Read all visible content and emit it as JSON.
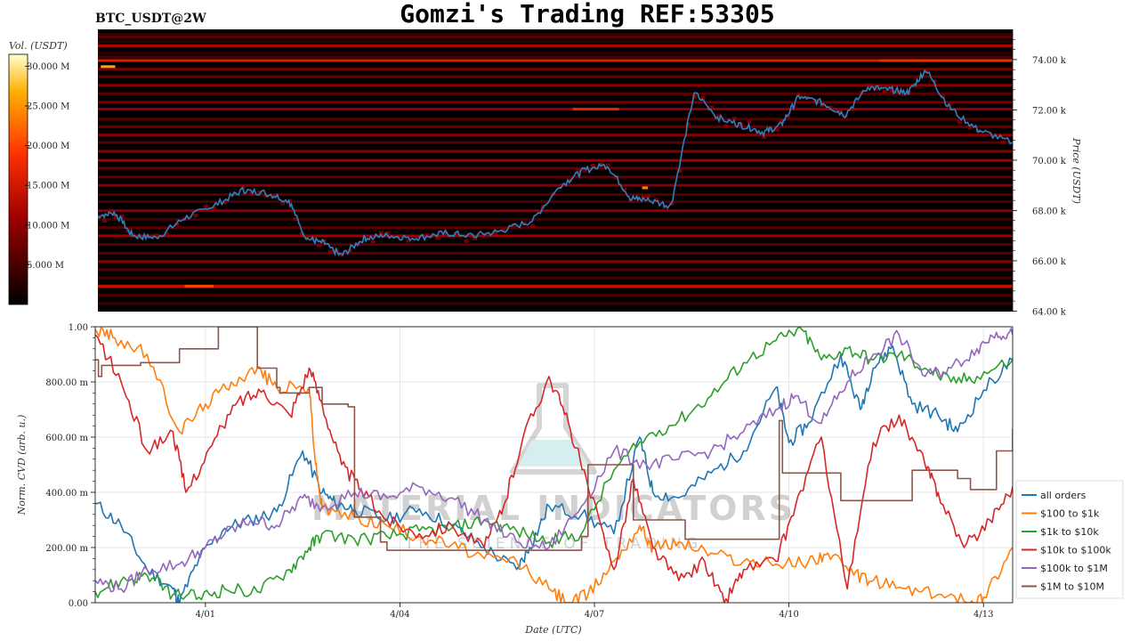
{
  "header": {
    "symbol": "BTC_USDT@2W",
    "title": "Gomzi's Trading REF:53305"
  },
  "colorbar": {
    "label": "Vol. (USDT)",
    "ticks": [
      "30.000 M",
      "25.000 M",
      "20.000 M",
      "15.000 M",
      "10.000 M",
      "5.000 M"
    ],
    "tick_values": [
      30,
      25,
      20,
      15,
      10,
      5
    ],
    "min": 0,
    "max": 31.5
  },
  "watermark": {
    "brand": "MATERIAL INDICATORS",
    "tagline": "THE SCIENCE OF TRADING"
  },
  "chart_data": [
    {
      "type": "heatmap",
      "ylabel": "Price (USDT)",
      "ytick_labels": [
        "74.00 k",
        "72.00 k",
        "70.00 k",
        "68.00 k",
        "66.00 k",
        "64.00 k"
      ],
      "ytick_values": [
        74000,
        72000,
        70000,
        68000,
        66000,
        64000
      ],
      "ylim": [
        63980,
        75200
      ],
      "xlim": [
        0,
        15.8
      ],
      "price_series": {
        "name": "",
        "color": "#2f7fc1",
        "x": [
          0,
          0.3,
          0.6,
          1.0,
          1.5,
          2.0,
          2.5,
          2.9,
          3.3,
          3.6,
          3.9,
          4.2,
          4.6,
          5.0,
          5.5,
          6.0,
          6.5,
          7.0,
          7.5,
          8.0,
          8.4,
          8.8,
          9.2,
          9.5,
          9.9,
          10.3,
          10.7,
          11.1,
          11.5,
          11.8,
          12.1,
          12.5,
          12.9,
          13.3,
          13.7,
          14.0,
          14.3,
          14.7,
          15.2,
          15.8
        ],
        "y": [
          67800,
          67900,
          67000,
          66900,
          67700,
          68200,
          68800,
          68700,
          68400,
          66900,
          66700,
          66200,
          66900,
          67000,
          66900,
          67100,
          67000,
          67200,
          67600,
          69000,
          69600,
          69800,
          68500,
          68400,
          68200,
          72700,
          71700,
          71400,
          71100,
          71400,
          72500,
          72300,
          71800,
          72900,
          72800,
          72700,
          73600,
          72100,
          71200,
          70700
        ]
      },
      "levels": [
        {
          "price": 75000,
          "v": 4
        },
        {
          "price": 74900,
          "v": 6
        },
        {
          "price": 74700,
          "v": 3
        },
        {
          "price": 74550,
          "v": 12
        },
        {
          "price": 74250,
          "v": 3
        },
        {
          "price": 74100,
          "v": 5
        },
        {
          "price": 73960,
          "v": 16
        },
        {
          "price": 73620,
          "v": 8
        },
        {
          "price": 73320,
          "v": 7
        },
        {
          "price": 72980,
          "v": 9
        },
        {
          "price": 72640,
          "v": 6
        },
        {
          "price": 72300,
          "v": 8
        },
        {
          "price": 72030,
          "v": 10
        },
        {
          "price": 71630,
          "v": 6
        },
        {
          "price": 71330,
          "v": 7
        },
        {
          "price": 71000,
          "v": 9
        },
        {
          "price": 70700,
          "v": 6
        },
        {
          "price": 70350,
          "v": 9
        },
        {
          "price": 69990,
          "v": 11
        },
        {
          "price": 69680,
          "v": 7
        },
        {
          "price": 69330,
          "v": 7
        },
        {
          "price": 69000,
          "v": 9
        },
        {
          "price": 68630,
          "v": 6
        },
        {
          "price": 68350,
          "v": 5
        },
        {
          "price": 67990,
          "v": 10
        },
        {
          "price": 67650,
          "v": 5
        },
        {
          "price": 67320,
          "v": 6
        },
        {
          "price": 66990,
          "v": 11
        },
        {
          "price": 66650,
          "v": 6
        },
        {
          "price": 66300,
          "v": 6
        },
        {
          "price": 65970,
          "v": 9
        },
        {
          "price": 65650,
          "v": 6
        },
        {
          "price": 65320,
          "v": 5
        },
        {
          "price": 65000,
          "v": 12
        },
        {
          "price": 64980,
          "v": 14
        },
        {
          "price": 64640,
          "v": 5
        },
        {
          "price": 64300,
          "v": 4
        }
      ],
      "hot_spots": [
        {
          "x0": 0.05,
          "x1": 0.3,
          "price": 73720,
          "v": 26
        },
        {
          "x0": 1.5,
          "x1": 2.0,
          "price": 64990,
          "v": 20
        },
        {
          "x0": 8.2,
          "x1": 9.0,
          "price": 72030,
          "v": 17
        },
        {
          "x0": 13.5,
          "x1": 15.8,
          "price": 73960,
          "v": 18
        },
        {
          "x0": 9.4,
          "x1": 9.5,
          "price": 68900,
          "v": 24
        }
      ]
    },
    {
      "type": "line",
      "xlabel": "Date (UTC)",
      "ylabel": "Norm. CVD (arb. u.)",
      "xtick_labels": [
        "4/01",
        "4/04",
        "4/07",
        "4/10",
        "4/13"
      ],
      "xtick_values": [
        1.7,
        4.7,
        7.7,
        10.7,
        13.7
      ],
      "ytick_labels": [
        "1.00",
        "800.00 m",
        "600.00 m",
        "400.00 m",
        "200.00 m",
        "0.00"
      ],
      "ytick_values": [
        1.0,
        0.8,
        0.6,
        0.4,
        0.2,
        0.0
      ],
      "xlim": [
        0,
        14.15
      ],
      "ylim": [
        0,
        1.0
      ],
      "series": [
        {
          "name": "all orders",
          "color": "#1f77b4",
          "x": [
            0,
            0.4,
            0.8,
            1.2,
            1.3,
            1.6,
            2.0,
            2.4,
            2.8,
            3.2,
            3.5,
            3.7,
            4.0,
            4.5,
            5.0,
            5.5,
            6.0,
            6.5,
            6.7,
            7.0,
            7.5,
            8.0,
            8.4,
            8.6,
            9.0,
            9.5,
            10.0,
            10.5,
            10.7,
            11.0,
            11.5,
            11.8,
            12.0,
            12.3,
            12.6,
            13.0,
            13.3,
            13.7,
            14.15
          ],
          "y": [
            0.36,
            0.28,
            0.12,
            0.05,
            0.0,
            0.16,
            0.27,
            0.3,
            0.33,
            0.55,
            0.4,
            0.36,
            0.34,
            0.3,
            0.34,
            0.28,
            0.2,
            0.12,
            0.2,
            0.35,
            0.32,
            0.25,
            0.6,
            0.4,
            0.38,
            0.47,
            0.55,
            0.78,
            0.58,
            0.65,
            0.9,
            0.7,
            0.85,
            0.93,
            0.72,
            0.68,
            0.62,
            0.77,
            0.88
          ]
        },
        {
          "name": "$100 to $1k",
          "color": "#ff7f0e",
          "x": [
            0,
            0.3,
            0.8,
            1.3,
            1.7,
            2.1,
            2.5,
            2.8,
            3.3,
            3.4,
            3.5,
            4.0,
            4.5,
            5.0,
            5.5,
            6.0,
            6.5,
            7.0,
            7.3,
            7.6,
            8.0,
            8.4,
            8.6,
            9.0,
            9.5,
            10.0,
            10.5,
            11.0,
            11.3,
            11.7,
            12.0,
            12.5,
            13.0,
            13.5,
            13.7,
            14.15
          ],
          "y": [
            0.99,
            0.96,
            0.9,
            0.62,
            0.72,
            0.8,
            0.85,
            0.78,
            0.78,
            0.5,
            0.34,
            0.31,
            0.28,
            0.24,
            0.21,
            0.16,
            0.15,
            0.05,
            0.0,
            0.03,
            0.15,
            0.28,
            0.2,
            0.22,
            0.18,
            0.15,
            0.14,
            0.15,
            0.18,
            0.1,
            0.08,
            0.05,
            0.03,
            0.0,
            0.02,
            0.2
          ]
        },
        {
          "name": "$1k to $10k",
          "color": "#2ca02c",
          "x": [
            0,
            0.4,
            0.8,
            1.2,
            1.6,
            2.0,
            2.5,
            3.0,
            3.3,
            3.5,
            4.0,
            4.5,
            5.0,
            5.5,
            6.0,
            6.5,
            7.0,
            7.5,
            8.0,
            8.5,
            9.0,
            9.5,
            10.0,
            10.5,
            10.9,
            11.2,
            11.6,
            12.0,
            12.4,
            12.8,
            13.2,
            13.6,
            14.15
          ],
          "y": [
            0.04,
            0.08,
            0.1,
            0.03,
            0.02,
            0.05,
            0.04,
            0.12,
            0.2,
            0.25,
            0.23,
            0.24,
            0.26,
            0.27,
            0.3,
            0.26,
            0.22,
            0.25,
            0.48,
            0.6,
            0.66,
            0.75,
            0.87,
            0.95,
            0.99,
            0.88,
            0.92,
            0.88,
            0.9,
            0.85,
            0.8,
            0.82,
            0.88
          ]
        },
        {
          "name": "$10k to $100k",
          "color": "#d62728",
          "x": [
            0,
            0.4,
            0.8,
            1.2,
            1.4,
            1.8,
            2.2,
            2.6,
            3.0,
            3.3,
            3.5,
            3.8,
            4.1,
            4.5,
            5.0,
            5.5,
            6.0,
            6.3,
            6.6,
            7.0,
            7.3,
            7.6,
            8.0,
            8.3,
            8.6,
            9.0,
            9.4,
            9.7,
            10.0,
            10.5,
            10.8,
            11.2,
            11.6,
            12.0,
            12.4,
            12.8,
            13.0,
            13.4,
            13.8,
            14.15
          ],
          "y": [
            0.97,
            0.8,
            0.55,
            0.62,
            0.4,
            0.57,
            0.73,
            0.77,
            0.68,
            0.85,
            0.72,
            0.5,
            0.41,
            0.3,
            0.25,
            0.28,
            0.2,
            0.35,
            0.6,
            0.82,
            0.65,
            0.42,
            0.12,
            0.45,
            0.2,
            0.08,
            0.15,
            0.0,
            0.12,
            0.15,
            0.35,
            0.6,
            0.05,
            0.58,
            0.68,
            0.5,
            0.4,
            0.2,
            0.3,
            0.42
          ]
        },
        {
          "name": "$100k to $1M",
          "color": "#9467bd",
          "x": [
            0,
            0.4,
            0.8,
            1.3,
            1.7,
            2.0,
            2.4,
            2.8,
            3.2,
            3.5,
            4.0,
            4.5,
            5.0,
            5.5,
            6.0,
            6.5,
            7.0,
            7.5,
            8.0,
            8.5,
            9.0,
            9.5,
            10.0,
            10.5,
            10.8,
            11.2,
            11.6,
            12.0,
            12.4,
            12.8,
            13.2,
            13.6,
            13.9,
            14.15
          ],
          "y": [
            0.08,
            0.05,
            0.12,
            0.14,
            0.2,
            0.25,
            0.3,
            0.28,
            0.38,
            0.35,
            0.4,
            0.38,
            0.42,
            0.38,
            0.3,
            0.22,
            0.2,
            0.35,
            0.55,
            0.5,
            0.52,
            0.55,
            0.62,
            0.7,
            0.75,
            0.65,
            0.8,
            0.9,
            0.97,
            0.82,
            0.85,
            0.92,
            0.98,
            0.97
          ]
        },
        {
          "name": "$1M to $10M",
          "color": "#8c564b",
          "step": true,
          "x": [
            0,
            0.05,
            0.1,
            0.7,
            1.3,
            1.9,
            2.5,
            2.8,
            2.85,
            3.3,
            3.5,
            3.9,
            4.0,
            4.4,
            4.5,
            6.1,
            6.2,
            7.5,
            7.6,
            8.3,
            8.4,
            9.1,
            10.5,
            10.55,
            10.6,
            11.3,
            11.5,
            12.2,
            12.6,
            13.3,
            13.5,
            13.9,
            14.15
          ],
          "y": [
            0.88,
            0.82,
            0.86,
            0.87,
            0.92,
            1.0,
            0.85,
            0.78,
            0.76,
            0.78,
            0.72,
            0.71,
            0.31,
            0.22,
            0.19,
            0.19,
            0.19,
            0.24,
            0.5,
            0.3,
            0.3,
            0.23,
            0.23,
            0.66,
            0.47,
            0.47,
            0.37,
            0.37,
            0.48,
            0.45,
            0.41,
            0.55,
            0.63
          ]
        }
      ]
    }
  ]
}
